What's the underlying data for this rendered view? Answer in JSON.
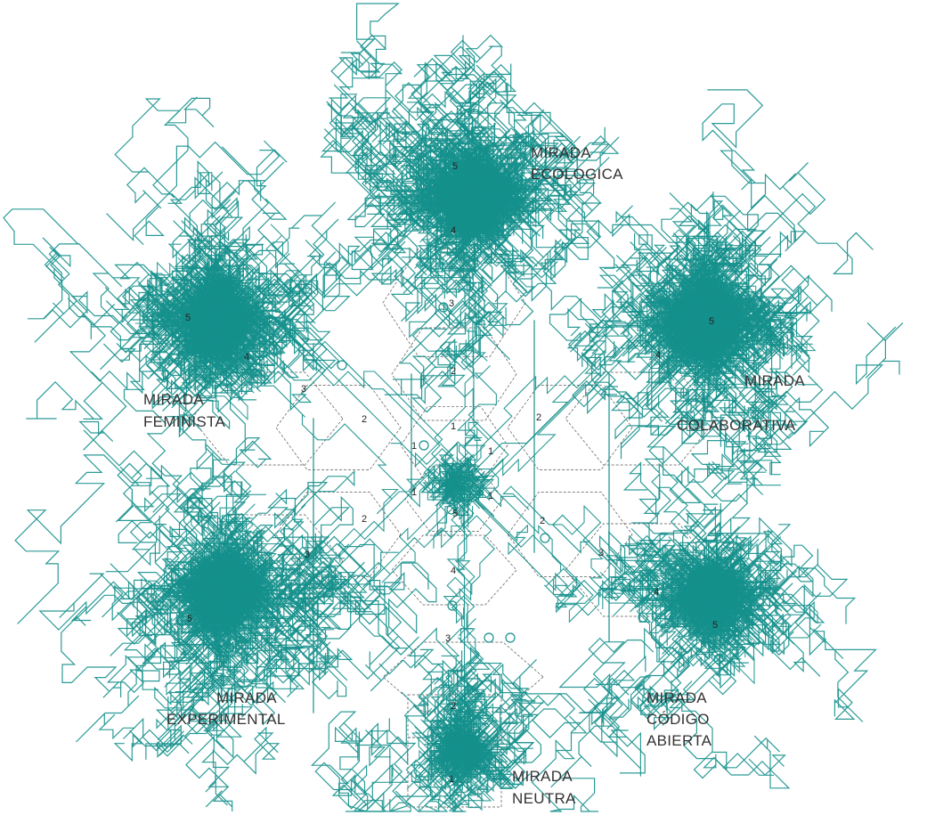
{
  "colors": {
    "trail": "#15908c",
    "grid": "#555555",
    "label": "#333333",
    "background": "#ffffff"
  },
  "labels": {
    "ecologica": [
      "MIRADA",
      "ECOLOGICA"
    ],
    "feminista": [
      "MIRADA",
      "FEMINISTA"
    ],
    "colaborativa": [
      "MIRADA",
      "COLABORATIVA"
    ],
    "experimental": [
      "MIRADA",
      "EXPERIMENTAL"
    ],
    "codigo_abierta": [
      "MIRADA",
      "CÓDIGO",
      "ABIERTA"
    ],
    "neutra": [
      "MIRADA",
      "NEUTRA"
    ]
  },
  "ring_numbers": [
    "1",
    "2",
    "3",
    "4",
    "5"
  ]
}
